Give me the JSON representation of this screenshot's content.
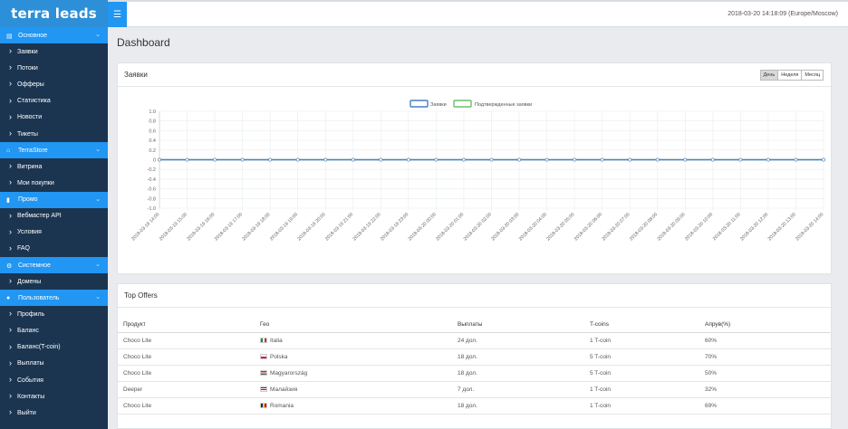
{
  "brand": {
    "title": "terra leads"
  },
  "sidebar": {
    "sections": [
      {
        "label": "Основное",
        "icon": "dashboard-icon",
        "items": [
          "Заявки",
          "Потоки",
          "Офферы",
          "Статистика",
          "Новости",
          "Тикеты"
        ]
      },
      {
        "label": "TerraStore",
        "icon": "store-icon",
        "items": [
          "Витрина",
          "Мои покупки"
        ]
      },
      {
        "label": "Промо",
        "icon": "book-icon",
        "items": [
          "Вебмастер API",
          "Условия",
          "FAQ"
        ]
      },
      {
        "label": "Системное",
        "icon": "cogs-icon",
        "items": [
          "Домены"
        ]
      },
      {
        "label": "Пользователь",
        "icon": "user-icon",
        "items": [
          "Профиль",
          "Баланс",
          "Баланс(T-coin)",
          "Выплаты",
          "События",
          "Контакты",
          "Выйти"
        ]
      }
    ]
  },
  "topbar": {
    "datetime": "2018-03-20 14:18:09 (Europe/Moscow)",
    "menu_icon": "hamburger-icon"
  },
  "page": {
    "title": "Dashboard"
  },
  "chart_panel": {
    "title": "Заявки",
    "ranges": [
      "День",
      "Неделя",
      "Месяц"
    ],
    "active_range": "День"
  },
  "chart_data": {
    "type": "line",
    "categories": [
      "2018-03-19 14:00",
      "2018-03-19 15:00",
      "2018-03-19 16:00",
      "2018-03-19 17:00",
      "2018-03-19 18:00",
      "2018-03-19 19:00",
      "2018-03-19 20:00",
      "2018-03-19 21:00",
      "2018-03-19 22:00",
      "2018-03-19 23:00",
      "2018-03-20 00:00",
      "2018-03-20 01:00",
      "2018-03-20 02:00",
      "2018-03-20 03:00",
      "2018-03-20 04:00",
      "2018-03-20 05:00",
      "2018-03-20 06:00",
      "2018-03-20 07:00",
      "2018-03-20 08:00",
      "2018-03-20 09:00",
      "2018-03-20 10:00",
      "2018-03-20 11:00",
      "2018-03-20 12:00",
      "2018-03-20 13:00",
      "2018-03-20 14:00"
    ],
    "series": [
      {
        "name": "Заявки",
        "color": "#4a7fc1",
        "values": [
          0,
          0,
          0,
          0,
          0,
          0,
          0,
          0,
          0,
          0,
          0,
          0,
          0,
          0,
          0,
          0,
          0,
          0,
          0,
          0,
          0,
          0,
          0,
          0,
          0
        ]
      },
      {
        "name": "Подтвержденные заявки",
        "color": "#6abf69",
        "values": [
          0,
          0,
          0,
          0,
          0,
          0,
          0,
          0,
          0,
          0,
          0,
          0,
          0,
          0,
          0,
          0,
          0,
          0,
          0,
          0,
          0,
          0,
          0,
          0,
          0
        ]
      }
    ],
    "yticks": [
      "1.0",
      "0.8",
      "0.6",
      "0.4",
      "0.2",
      "0",
      "-0.2",
      "-0.4",
      "-0.6",
      "-0.8",
      "-1.0"
    ],
    "ylim": [
      -1.0,
      1.0
    ],
    "legend": "top-center",
    "grid": true
  },
  "offers": {
    "title": "Top Offers",
    "columns": [
      "Продукт",
      "Гео",
      "Выплаты",
      "T-coins",
      "Апрув(%)"
    ],
    "rows": [
      {
        "product": "Choco Lite",
        "geo": "Italia",
        "flag": [
          "#009246",
          "#ffffff",
          "#ce2b37"
        ],
        "flag_dir": "v",
        "payout": "24 дол.",
        "tcoins": "1 T-coin",
        "approve": "60%"
      },
      {
        "product": "Choco Lite",
        "geo": "Polska",
        "flag": [
          "#ffffff",
          "#dc143c"
        ],
        "flag_dir": "h",
        "payout": "18 дол.",
        "tcoins": "5 T-coin",
        "approve": "70%"
      },
      {
        "product": "Choco Lite",
        "geo": "Magyarország",
        "flag": [
          "#cd2a3e",
          "#ffffff",
          "#436f4d"
        ],
        "flag_dir": "h",
        "payout": "18 дол.",
        "tcoins": "5 T-coin",
        "approve": "50%"
      },
      {
        "product": "Deeper",
        "geo": "Малайзия",
        "flag": [
          "#cc0000",
          "#ffffff",
          "#cc0000",
          "#ffffff"
        ],
        "flag_dir": "h",
        "payout": "7 дол.",
        "tcoins": "1 T-coin",
        "approve": "32%"
      },
      {
        "product": "Choco Lite",
        "geo": "Romania",
        "flag": [
          "#002b7f",
          "#fcd116",
          "#ce1126"
        ],
        "flag_dir": "v",
        "payout": "18 дол.",
        "tcoins": "1 T-coin",
        "approve": "69%"
      }
    ]
  }
}
